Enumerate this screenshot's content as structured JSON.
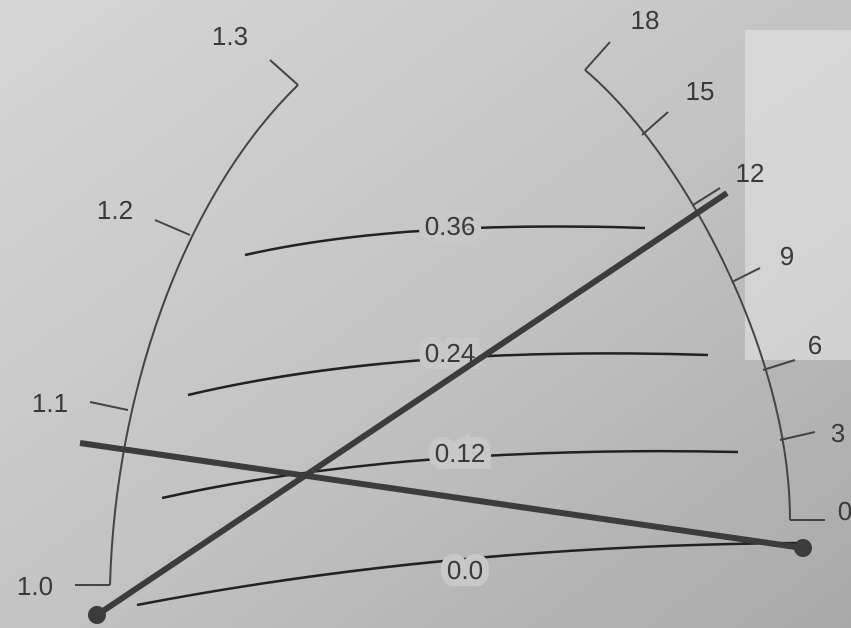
{
  "left_scale": {
    "labels": [
      "1.0",
      "1.1",
      "1.2",
      "1.3"
    ]
  },
  "right_scale": {
    "labels": [
      "0",
      "3",
      "6",
      "9",
      "12",
      "15",
      "18"
    ]
  },
  "curves": {
    "labels": [
      "0.0",
      "0.12",
      "0.24",
      "0.36"
    ]
  }
}
